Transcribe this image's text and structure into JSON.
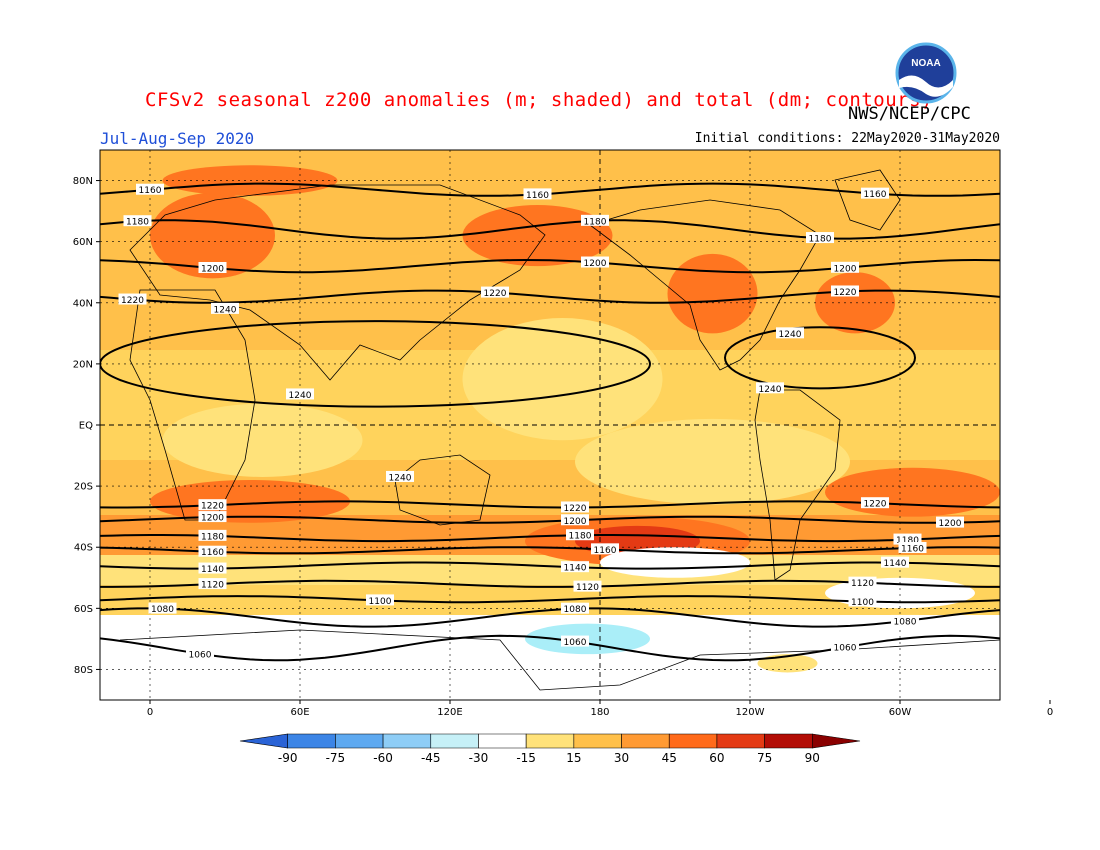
{
  "header": {
    "title": "CFSv2 seasonal z200 anomalies (m; shaded) and total (dm; contours)",
    "agency": "NWS/NCEP/CPC",
    "period": "Jul-Aug-Sep 2020",
    "initial_conditions": "Initial conditions: 22May2020-31May2020",
    "logo_text": "NOAA"
  },
  "map": {
    "projection": "equirectangular",
    "lon_range": [
      -20,
      340
    ],
    "lat_range": [
      -90,
      90
    ],
    "lat_ticks": [
      {
        "lat": 80,
        "label": "80N"
      },
      {
        "lat": 60,
        "label": "60N"
      },
      {
        "lat": 40,
        "label": "40N"
      },
      {
        "lat": 20,
        "label": "20N"
      },
      {
        "lat": 0,
        "label": "EQ"
      },
      {
        "lat": -20,
        "label": "20S"
      },
      {
        "lat": -40,
        "label": "40S"
      },
      {
        "lat": -60,
        "label": "60S"
      },
      {
        "lat": -80,
        "label": "80S"
      }
    ],
    "lon_ticks": [
      {
        "lon": 0,
        "label": "0"
      },
      {
        "lon": 60,
        "label": "60E"
      },
      {
        "lon": 120,
        "label": "120E"
      },
      {
        "lon": 180,
        "label": "180"
      },
      {
        "lon": 240,
        "label": "120W"
      },
      {
        "lon": 300,
        "label": "60W"
      },
      {
        "lon": 360,
        "label": "0"
      }
    ],
    "contours": [
      {
        "value": 1160,
        "label": "1160",
        "lat": 77,
        "amp": 2,
        "labels_at_lon": [
          0,
          155,
          290
        ]
      },
      {
        "value": 1180,
        "label": "1180",
        "lat": 64,
        "amp": 3,
        "labels_at_lon": [
          -5,
          178,
          268
        ]
      },
      {
        "value": 1200,
        "label": "1200",
        "lat": 52,
        "amp": 2,
        "labels_at_lon": [
          25,
          178,
          278
        ]
      },
      {
        "value": 1220,
        "label": "1220",
        "lat": 42,
        "amp": 2,
        "labels_at_lon": [
          -7,
          138,
          278
        ]
      },
      {
        "value": 1220,
        "label": "1220",
        "lat": -26,
        "amp": 1,
        "labels_at_lon": [
          25,
          170,
          290
        ]
      },
      {
        "value": 1200,
        "label": "1200",
        "lat": -31,
        "amp": 1,
        "labels_at_lon": [
          25,
          170,
          320
        ]
      },
      {
        "value": 1180,
        "label": "1180",
        "lat": -37,
        "amp": 1,
        "labels_at_lon": [
          25,
          172,
          303
        ]
      },
      {
        "value": 1160,
        "label": "1160",
        "lat": -41,
        "amp": 1,
        "labels_at_lon": [
          25,
          182,
          305
        ]
      },
      {
        "value": 1140,
        "label": "1140",
        "lat": -46,
        "amp": 1,
        "labels_at_lon": [
          25,
          170,
          298
        ]
      },
      {
        "value": 1120,
        "label": "1120",
        "lat": -52,
        "amp": 1,
        "labels_at_lon": [
          25,
          175,
          285
        ]
      },
      {
        "value": 1100,
        "label": "1100",
        "lat": -57,
        "amp": 1,
        "labels_at_lon": [
          92,
          285
        ]
      },
      {
        "value": 1080,
        "label": "1080",
        "lat": -63,
        "amp": 3,
        "labels_at_lon": [
          5,
          170,
          302
        ]
      },
      {
        "value": 1060,
        "label": "1060",
        "lat": -73,
        "amp": 4,
        "labels_at_lon": [
          20,
          170,
          278
        ]
      }
    ],
    "closed_contours": [
      {
        "value": 1240,
        "label": "1240",
        "center_lon": 90,
        "center_lat": 20,
        "rlon": 110,
        "rlat": 14,
        "labels_at": [
          [
            30,
            38
          ],
          [
            60,
            10
          ],
          [
            100,
            -17
          ]
        ]
      },
      {
        "value": 1240,
        "label": "1240",
        "center_lon": 268,
        "center_lat": 22,
        "rlon": 38,
        "rlat": 10,
        "labels_at": [
          [
            256,
            30
          ],
          [
            248,
            12
          ]
        ]
      }
    ],
    "anomaly_regions": [
      {
        "value": 30,
        "color": "#ffe27a",
        "center": [
          165,
          15
        ],
        "r": [
          40,
          20
        ]
      },
      {
        "value": 30,
        "color": "#ffe27a",
        "center": [
          45,
          -5
        ],
        "r": [
          40,
          12
        ]
      },
      {
        "value": 30,
        "color": "#ffe27a",
        "center": [
          225,
          -12
        ],
        "r": [
          55,
          14
        ]
      },
      {
        "value": 60,
        "color": "#ff7520",
        "center": [
          25,
          62
        ],
        "r": [
          25,
          14
        ]
      },
      {
        "value": 60,
        "color": "#ff7520",
        "center": [
          155,
          62
        ],
        "r": [
          30,
          10
        ]
      },
      {
        "value": 60,
        "color": "#ff7520",
        "center": [
          225,
          43
        ],
        "r": [
          18,
          13
        ]
      },
      {
        "value": 60,
        "color": "#ff7520",
        "center": [
          282,
          40
        ],
        "r": [
          16,
          10
        ]
      },
      {
        "value": 60,
        "color": "#ff7520",
        "center": [
          40,
          80
        ],
        "r": [
          35,
          5
        ]
      },
      {
        "value": 60,
        "color": "#ff7520",
        "center": [
          40,
          -25
        ],
        "r": [
          40,
          7
        ]
      },
      {
        "value": 60,
        "color": "#ff7520",
        "center": [
          195,
          -38
        ],
        "r": [
          45,
          8
        ]
      },
      {
        "value": 60,
        "color": "#ff7520",
        "center": [
          305,
          -22
        ],
        "r": [
          35,
          8
        ]
      },
      {
        "value": 75,
        "color": "#e43a14",
        "center": [
          195,
          -38
        ],
        "r": [
          25,
          5
        ]
      },
      {
        "value": 15,
        "color": "#ffffff",
        "center": [
          210,
          -45
        ],
        "r": [
          30,
          5
        ]
      },
      {
        "value": 15,
        "color": "#ffffff",
        "center": [
          300,
          -55
        ],
        "r": [
          30,
          5
        ]
      },
      {
        "value": -30,
        "color": "#aaeef8",
        "center": [
          175,
          -70
        ],
        "r": [
          25,
          5
        ]
      },
      {
        "value": 30,
        "color": "#ffe27a",
        "center": [
          255,
          -78
        ],
        "r": [
          12,
          3
        ]
      }
    ]
  },
  "colorbar": {
    "colors": [
      "#2a63d6",
      "#3c85e6",
      "#5ea9f0",
      "#8ecdf6",
      "#c6f0f7",
      "#ffffff",
      "#ffe27a",
      "#ffc04a",
      "#ff9a33",
      "#ff6a1a",
      "#e43a14",
      "#b30d06",
      "#8a0000"
    ],
    "labels": [
      "-90",
      "-75",
      "-60",
      "-45",
      "-30",
      "-15",
      "15",
      "30",
      "45",
      "60",
      "75",
      "90"
    ]
  }
}
